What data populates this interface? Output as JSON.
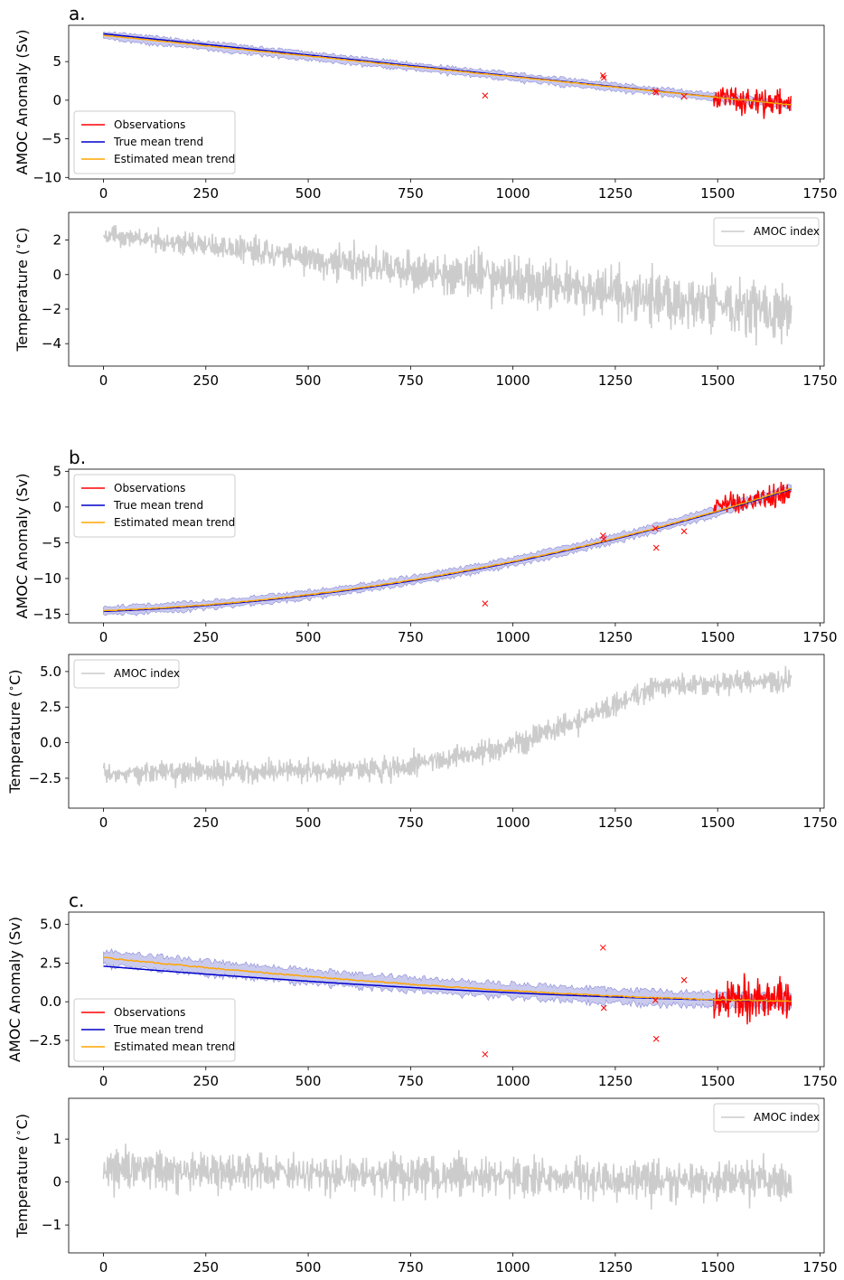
{
  "colors": {
    "observations": "#ff0000",
    "true_trend": "#0000cc",
    "estimated_trend": "#ffa500",
    "band": "#8a8ad8",
    "amoc_index": "#cccccc",
    "markers": "#ff0000"
  },
  "chart_data": [
    {
      "id": "a-anomaly",
      "panel_label": "a.",
      "type": "line",
      "ylabel": "AMOC Anomaly (Sv)",
      "xlim": [
        -85,
        1760
      ],
      "ylim": [
        -10.2,
        9.7
      ],
      "xticks": [
        0,
        250,
        500,
        750,
        1000,
        1250,
        1500,
        1750
      ],
      "yticks": [
        -10,
        -5,
        0,
        5
      ],
      "legend_position": "lower-left",
      "legend": [
        "Observations",
        "True mean trend",
        "Estimated mean trend"
      ],
      "x_range": [
        0,
        1680
      ],
      "true_trend": {
        "model": "linear",
        "y_start": 8.6,
        "y_end": -0.6
      },
      "estimated_trend": {
        "model": "linear",
        "y_start": 8.4,
        "y_end": -0.6
      },
      "band_halfwidth": 0.5,
      "observations": {
        "x_range": [
          1490,
          1680
        ],
        "level_start": 0.3,
        "level_end": -0.5,
        "spread": 1.6,
        "min": -9.4,
        "max": 5.3
      },
      "sparse_observations": [
        [
          932,
          0.6
        ],
        [
          1220,
          3.2
        ],
        [
          1222,
          2.9
        ],
        [
          1348,
          1.2
        ],
        [
          1350,
          1.0
        ],
        [
          1418,
          0.5
        ]
      ]
    },
    {
      "id": "a-temperature",
      "type": "line",
      "ylabel": "Temperature ($^\\circ$C)",
      "xlim": [
        -85,
        1760
      ],
      "ylim": [
        -5.3,
        3.6
      ],
      "xticks": [
        0,
        250,
        500,
        750,
        1000,
        1250,
        1500,
        1750
      ],
      "yticks": [
        -4,
        -2,
        0,
        2
      ],
      "legend_position": "top-right",
      "legend": [
        "AMOC index"
      ],
      "amoc_index": {
        "x_range": [
          0,
          1680
        ],
        "level_start": 2.3,
        "level_end": -2.2,
        "amp_start": 0.5,
        "amp_end": 1.8,
        "min": -4.9,
        "max": 3.2
      }
    },
    {
      "id": "b-anomaly",
      "panel_label": "b.",
      "type": "line",
      "ylabel": "AMOC Anomaly (Sv)",
      "xlim": [
        -85,
        1760
      ],
      "ylim": [
        -16.2,
        5.3
      ],
      "xticks": [
        0,
        250,
        500,
        750,
        1000,
        1250,
        1500,
        1750
      ],
      "yticks": [
        -15,
        -10,
        -5,
        0,
        5
      ],
      "legend_position": "upper-left",
      "legend": [
        "Observations",
        "True mean trend",
        "Estimated mean trend"
      ],
      "x_range": [
        0,
        1680
      ],
      "true_trend": {
        "model": "quadratic",
        "y_start": -14.6,
        "y_end": 2.5
      },
      "estimated_trend": {
        "model": "quadratic",
        "y_start": -14.5,
        "y_end": 2.6
      },
      "band_halfwidth": 0.6,
      "observations": {
        "x_range": [
          1490,
          1680
        ],
        "level_start": 0.5,
        "level_end": 1.8,
        "spread": 1.5,
        "min": -6.4,
        "max": 4.2
      },
      "sparse_observations": [
        [
          932,
          -13.5
        ],
        [
          1220,
          -4.0
        ],
        [
          1222,
          -4.5
        ],
        [
          1348,
          -3.0
        ],
        [
          1350,
          -5.7
        ],
        [
          1418,
          -3.4
        ]
      ]
    },
    {
      "id": "b-temperature",
      "type": "line",
      "ylabel": "Temperature ($^\\circ$C)",
      "xlim": [
        -85,
        1760
      ],
      "ylim": [
        -4.6,
        6.2
      ],
      "xticks": [
        0,
        250,
        500,
        750,
        1000,
        1250,
        1500,
        1750
      ],
      "yticks": [
        -2.5,
        0.0,
        2.5,
        5.0
      ],
      "legend_position": "top-left",
      "legend": [
        "AMOC index"
      ],
      "amoc_index": {
        "x_range": [
          0,
          1680
        ],
        "level_points": [
          [
            0,
            -2.1
          ],
          [
            400,
            -2.0
          ],
          [
            700,
            -1.9
          ],
          [
            1000,
            -0.2
          ],
          [
            1200,
            2.0
          ],
          [
            1350,
            4.0
          ],
          [
            1680,
            4.3
          ]
        ],
        "amp": 0.8,
        "min": -4.2,
        "max": 5.7
      }
    },
    {
      "id": "c-anomaly",
      "panel_label": "c.",
      "type": "line",
      "ylabel": "AMOC Anomaly (Sv)",
      "xlim": [
        -85,
        1760
      ],
      "ylim": [
        -4.2,
        5.8
      ],
      "xticks": [
        0,
        250,
        500,
        750,
        1000,
        1250,
        1500,
        1750
      ],
      "yticks": [
        -2.5,
        0.0,
        2.5,
        5.0
      ],
      "legend_position": "lower-left",
      "legend": [
        "Observations",
        "True mean trend",
        "Estimated mean trend"
      ],
      "x_range": [
        0,
        1680
      ],
      "true_trend": {
        "model": "decay",
        "y_start": 2.3,
        "y_end": 0.05
      },
      "estimated_trend": {
        "model": "decay",
        "y_start": 2.85,
        "y_end": 0.05
      },
      "band_halfwidth": 0.45,
      "observations": {
        "x_range": [
          1490,
          1680
        ],
        "level_start": 0.1,
        "level_end": 0.0,
        "spread": 1.3,
        "min": -3.7,
        "max": 5.3
      },
      "sparse_observations": [
        [
          932,
          -3.4
        ],
        [
          1220,
          3.5
        ],
        [
          1222,
          -0.4
        ],
        [
          1348,
          0.1
        ],
        [
          1350,
          -2.4
        ],
        [
          1418,
          1.4
        ]
      ]
    },
    {
      "id": "c-temperature",
      "type": "line",
      "ylabel": "Temperature ($^\\circ$C)",
      "xlim": [
        -85,
        1760
      ],
      "ylim": [
        -1.65,
        1.95
      ],
      "xticks": [
        0,
        250,
        500,
        750,
        1000,
        1250,
        1500,
        1750
      ],
      "yticks": [
        -1,
        0,
        1
      ],
      "legend_position": "top-right",
      "legend": [
        "AMOC index"
      ],
      "amoc_index": {
        "x_range": [
          0,
          1680
        ],
        "level_start": 0.3,
        "level_end": 0.0,
        "amp_start": 0.45,
        "amp_end": 0.45,
        "min": -1.5,
        "max": 1.8
      }
    }
  ]
}
